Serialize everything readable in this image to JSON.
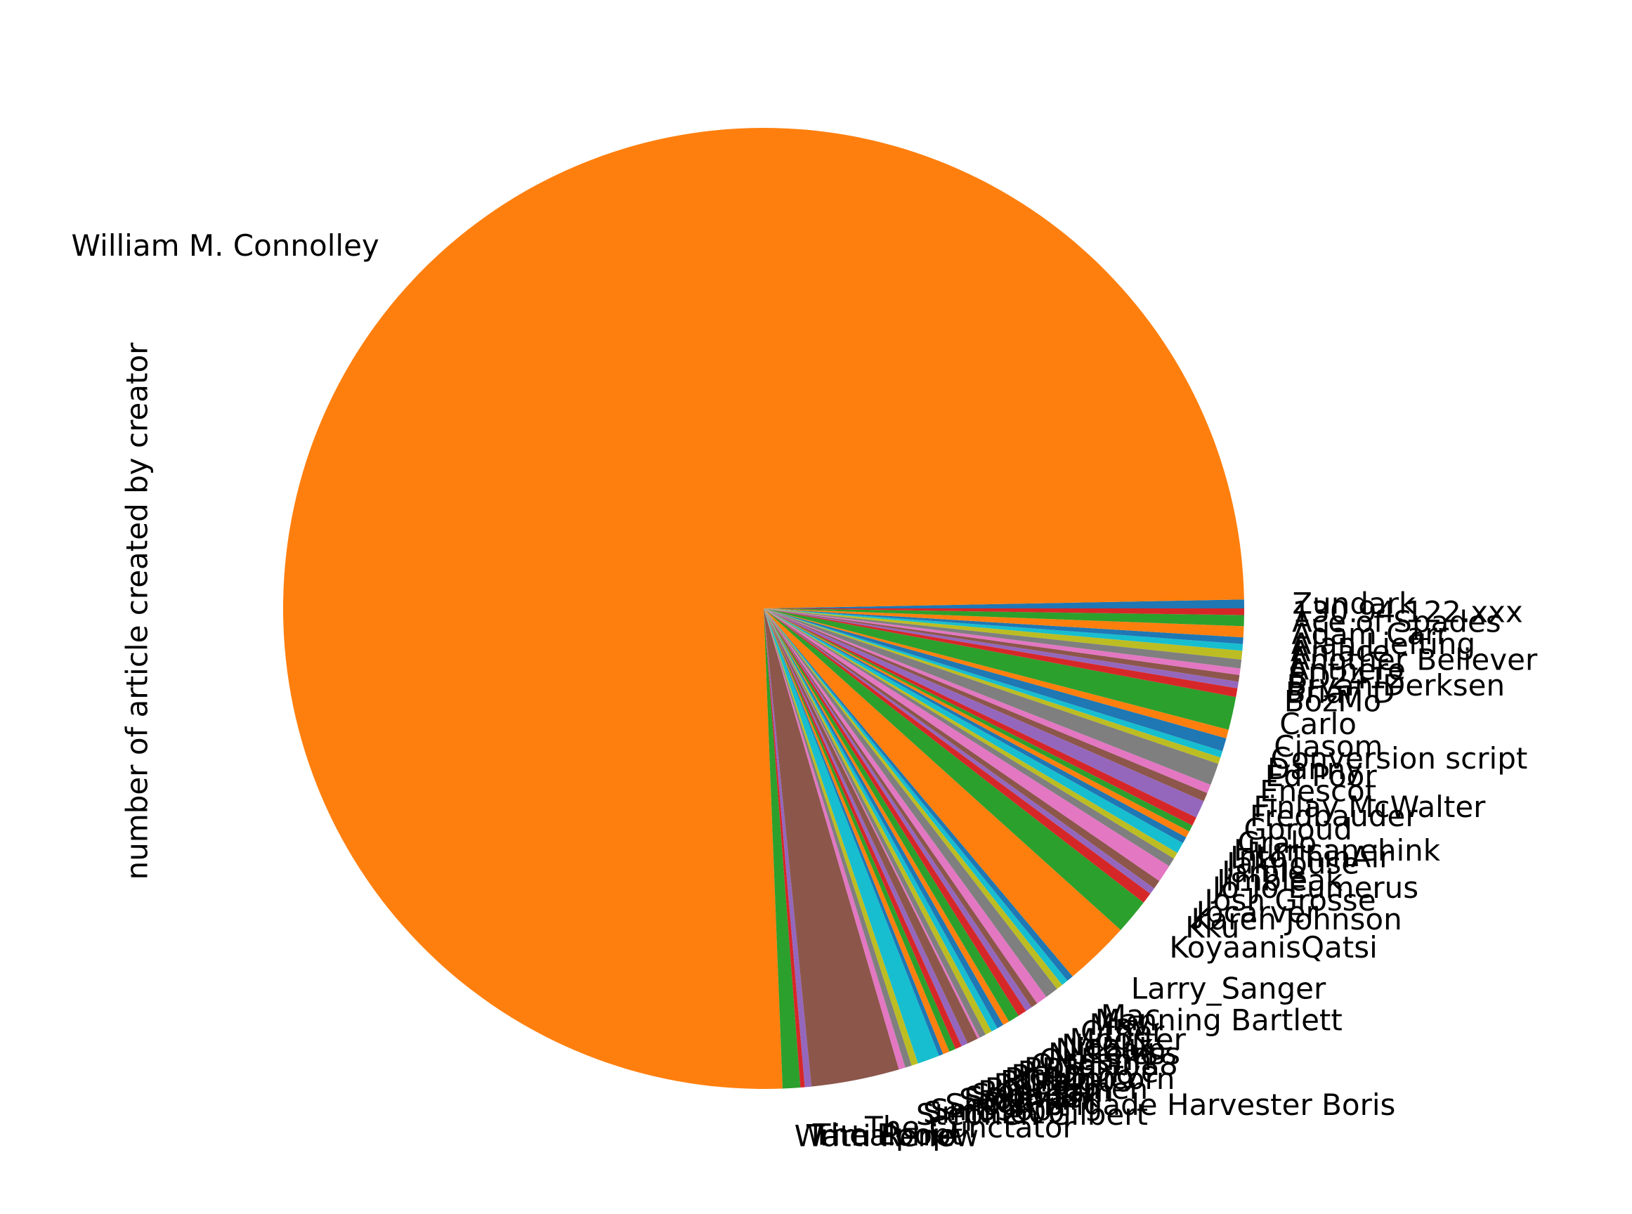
{
  "chart_data": {
    "type": "pie",
    "ylabel": "number of article created by creator",
    "legend": "none",
    "start_angle_deg": 0,
    "direction": "counterclockwise",
    "palette": [
      "#1f77b4",
      "#ff7f0e",
      "#2ca02c",
      "#d62728",
      "#9467bd",
      "#8c564b",
      "#e377c2",
      "#7f7f7f",
      "#bcbd22",
      "#17becf"
    ],
    "slices": [
      {
        "label": "Zundark",
        "value": 4
      },
      {
        "label": "William M. Connolley",
        "value": 1020
      },
      {
        "label": "Watti Renew",
        "value": 8
      },
      {
        "label": "Trimalchio",
        "value": 2
      },
      {
        "label": "The Epopt",
        "value": 3
      },
      {
        "label": "The Cunctator",
        "value": 40
      },
      {
        "label": "Stephen Gilbert",
        "value": 3
      },
      {
        "label": "Smith609",
        "value": 3
      },
      {
        "label": "Sm8900",
        "value": 3
      },
      {
        "label": "Shock Brigade Harvester Boris",
        "value": 10
      },
      {
        "label": "Scott Ilini",
        "value": 2
      },
      {
        "label": "Saravask",
        "value": 3
      },
      {
        "label": "Sadads",
        "value": 3
      },
      {
        "label": "RonCram",
        "value": 3
      },
      {
        "label": "Rmhermen",
        "value": 3
      },
      {
        "label": "Rd232",
        "value": 5
      },
      {
        "label": "RCraig09",
        "value": 1
      },
      {
        "label": "Pinkunicorn",
        "value": 3
      },
      {
        "label": "Pcb21",
        "value": 3
      },
      {
        "label": "Paul Drye",
        "value": 3
      },
      {
        "label": "PDH",
        "value": 3
      },
      {
        "label": "Ortolan88",
        "value": 3
      },
      {
        "label": "Oceanh",
        "value": 5
      },
      {
        "label": "Nukeless",
        "value": 4
      },
      {
        "label": "Nichalp",
        "value": 3
      },
      {
        "label": "Neelix",
        "value": 3
      },
      {
        "label": "Mporter",
        "value": 5
      },
      {
        "label": "Other",
        "value": 6
      },
      {
        "label": "Mav",
        "value": 3
      },
      {
        "label": "Manning Bartlett",
        "value": 3
      },
      {
        "label": "Mac",
        "value": 3
      },
      {
        "label": "Larry_Sanger",
        "value": 30
      },
      {
        "label": "KoyaanisQatsi",
        "value": 16
      },
      {
        "label": "Kku",
        "value": 5
      },
      {
        "label": "Karen Johnson",
        "value": 3
      },
      {
        "label": "Jpcarver",
        "value": 4
      },
      {
        "label": "Josh Grosse",
        "value": 8
      },
      {
        "label": "Jo-Jo Eumerus",
        "value": 4
      },
      {
        "label": "Jimbleak",
        "value": 3
      },
      {
        "label": "Jarble",
        "value": 5
      },
      {
        "label": "Jaknouse",
        "value": 3
      },
      {
        "label": "IntoThinAir",
        "value": 3
      },
      {
        "label": "Hurricanehink",
        "value": 3
      },
      {
        "label": "Gralo",
        "value": 4
      },
      {
        "label": "Gproud",
        "value": 8
      },
      {
        "label": "Fredbauder",
        "value": 4
      },
      {
        "label": "Finlay McWalter",
        "value": 4
      },
      {
        "label": "Enescot",
        "value": 10
      },
      {
        "label": "Ed Poor",
        "value": 3
      },
      {
        "label": "Danny",
        "value": 3
      },
      {
        "label": "Conversion script",
        "value": 6
      },
      {
        "label": "Cjasom",
        "value": 4
      },
      {
        "label": "Carlo",
        "value": 15
      },
      {
        "label": "BozMo",
        "value": 4
      },
      {
        "label": "Brian D",
        "value": 3
      },
      {
        "label": "Bryan Derksen",
        "value": 3
      },
      {
        "label": "BD2412",
        "value": 3
      },
      {
        "label": "Anthere",
        "value": 4
      },
      {
        "label": "Another Believer",
        "value": 4
      },
      {
        "label": "Anlace",
        "value": 3
      },
      {
        "label": "Alan Liefting",
        "value": 3
      },
      {
        "label": "Adam Carr",
        "value": 5
      },
      {
        "label": "Ace of Spades",
        "value": 5
      },
      {
        "label": "130.94.122.xxx",
        "value": 3
      }
    ]
  }
}
